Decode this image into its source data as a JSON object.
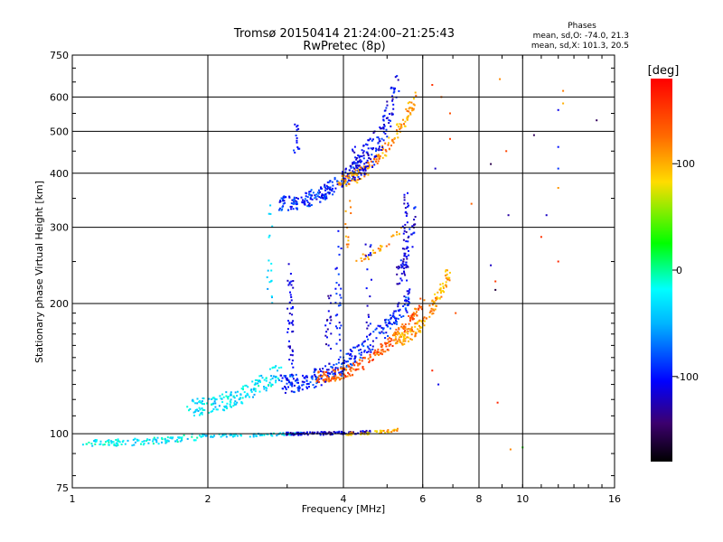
{
  "chart_data": {
    "type": "scatter",
    "title": "Tromsø 20150414 21:24:00–21:25:43",
    "subtitle": "RwPretec (8p)",
    "xlabel": "Frequency [MHz]",
    "ylabel": "Stationary phase Virtual Height [km]",
    "x_scale": "log",
    "y_scale": "log",
    "xlim": [
      1,
      16
    ],
    "ylim": [
      75,
      750
    ],
    "x_ticks": [
      1,
      2,
      4,
      6,
      8,
      10,
      16
    ],
    "x_tick_labels": [
      "1",
      "2",
      "4",
      "6",
      "8",
      "10",
      "16"
    ],
    "y_ticks": [
      75,
      100,
      200,
      300,
      400,
      500,
      600,
      750
    ],
    "y_tick_labels": [
      "75",
      "100",
      "200",
      "300",
      "400",
      "500",
      "600",
      "750"
    ],
    "grid": true,
    "phases_info": {
      "title": "Phases",
      "line_o": "mean, sd,O: -74.0, 21.3",
      "line_x": "mean, sd,X: 101.3, 20.5"
    },
    "colorbar": {
      "label": "[deg]",
      "range": [
        -180,
        180
      ],
      "ticks": [
        100,
        0,
        -100
      ],
      "tick_labels": [
        "100",
        "0",
        "-100"
      ]
    },
    "traces": [
      {
        "f0": 1.05,
        "f1": 1.98,
        "h0": 95,
        "h1": 99,
        "phase": -25,
        "n": 120,
        "spread": 0.018
      },
      {
        "f0": 1.98,
        "f1": 3.2,
        "h0": 99,
        "h1": 100,
        "phase": -35,
        "n": 70,
        "spread": 0.008
      },
      {
        "f0": 3.0,
        "f1": 4.6,
        "h0": 100,
        "h1": 101,
        "phase": -115,
        "n": 110,
        "spread": 0.008
      },
      {
        "f0": 4.0,
        "f1": 5.3,
        "h0": 100,
        "h1": 102,
        "phase": 100,
        "n": 40,
        "spread": 0.008
      },
      {
        "f0": 1.8,
        "f1": 2.9,
        "h0": 115,
        "h1": 140,
        "phase": -30,
        "n": 190,
        "spread": 0.045
      },
      {
        "f0": 2.9,
        "f1": 5.7,
        "h0": 130,
        "h1": 210,
        "phase": -95,
        "n": 300,
        "spread": 0.05
      },
      {
        "f0": 3.5,
        "f1": 6.0,
        "h0": 135,
        "h1": 200,
        "phase": 135,
        "n": 220,
        "spread": 0.03
      },
      {
        "f0": 5.2,
        "f1": 6.9,
        "h0": 165,
        "h1": 240,
        "phase": 105,
        "n": 140,
        "spread": 0.035
      },
      {
        "f0": 2.9,
        "f1": 4.4,
        "h0": 340,
        "h1": 425,
        "phase": -95,
        "n": 220,
        "spread": 0.04
      },
      {
        "f0": 3.9,
        "f1": 5.8,
        "h0": 385,
        "h1": 600,
        "phase": 110,
        "n": 160,
        "spread": 0.035
      },
      {
        "f0": 4.2,
        "f1": 5.3,
        "h0": 420,
        "h1": 640,
        "phase": -105,
        "n": 150,
        "spread": 0.09
      },
      {
        "f0": 5.2,
        "f1": 5.8,
        "h0": 230,
        "h1": 330,
        "phase": -110,
        "n": 50,
        "spread": 0.06
      },
      {
        "f0": 4.3,
        "f1": 5.4,
        "h0": 255,
        "h1": 300,
        "phase": 110,
        "n": 30,
        "spread": 0.02
      }
    ],
    "columns": [
      {
        "f": 2.75,
        "h0": 200,
        "h1": 360,
        "phase": -40,
        "n": 18
      },
      {
        "f": 3.05,
        "h0": 140,
        "h1": 250,
        "phase": -110,
        "n": 45
      },
      {
        "f": 3.15,
        "h0": 430,
        "h1": 550,
        "phase": -100,
        "n": 15
      },
      {
        "f": 3.7,
        "h0": 130,
        "h1": 210,
        "phase": -120,
        "n": 25
      },
      {
        "f": 3.9,
        "h0": 150,
        "h1": 300,
        "phase": -100,
        "n": 30
      },
      {
        "f": 4.55,
        "h0": 150,
        "h1": 280,
        "phase": -110,
        "n": 20
      },
      {
        "f": 5.5,
        "h0": 220,
        "h1": 360,
        "phase": -115,
        "n": 40
      },
      {
        "f": 4.1,
        "h0": 270,
        "h1": 350,
        "phase": 110,
        "n": 12
      }
    ],
    "isolated_points": [
      {
        "f": 8.9,
        "h": 660,
        "phase": 115
      },
      {
        "f": 8.5,
        "h": 420,
        "phase": -155
      },
      {
        "f": 9.2,
        "h": 450,
        "phase": 145
      },
      {
        "f": 9.3,
        "h": 320,
        "phase": -130
      },
      {
        "f": 10.6,
        "h": 490,
        "phase": -150
      },
      {
        "f": 11.3,
        "h": 320,
        "phase": -120
      },
      {
        "f": 12.3,
        "h": 580,
        "phase": 100
      },
      {
        "f": 12.0,
        "h": 560,
        "phase": -110
      },
      {
        "f": 12.0,
        "h": 460,
        "phase": -100
      },
      {
        "f": 12.0,
        "h": 410,
        "phase": -90
      },
      {
        "f": 12.0,
        "h": 370,
        "phase": 110
      },
      {
        "f": 14.6,
        "h": 530,
        "phase": -150
      },
      {
        "f": 12.3,
        "h": 620,
        "phase": 120
      },
      {
        "f": 11.0,
        "h": 285,
        "phase": 155
      },
      {
        "f": 12.0,
        "h": 250,
        "phase": 160
      },
      {
        "f": 8.7,
        "h": 215,
        "phase": -160
      },
      {
        "f": 8.7,
        "h": 225,
        "phase": 150
      },
      {
        "f": 8.5,
        "h": 245,
        "phase": -120
      },
      {
        "f": 9.4,
        "h": 92,
        "phase": 115
      },
      {
        "f": 10.0,
        "h": 93,
        "phase": 30
      },
      {
        "f": 8.8,
        "h": 118,
        "phase": 160
      },
      {
        "f": 7.7,
        "h": 340,
        "phase": 130
      },
      {
        "f": 7.1,
        "h": 190,
        "phase": 140
      },
      {
        "f": 6.3,
        "h": 140,
        "phase": 160
      },
      {
        "f": 6.5,
        "h": 130,
        "phase": -110
      },
      {
        "f": 6.9,
        "h": 550,
        "phase": 140
      },
      {
        "f": 6.6,
        "h": 600,
        "phase": 130
      },
      {
        "f": 6.9,
        "h": 480,
        "phase": 150
      },
      {
        "f": 6.4,
        "h": 410,
        "phase": -120
      },
      {
        "f": 6.3,
        "h": 640,
        "phase": 155
      }
    ]
  }
}
